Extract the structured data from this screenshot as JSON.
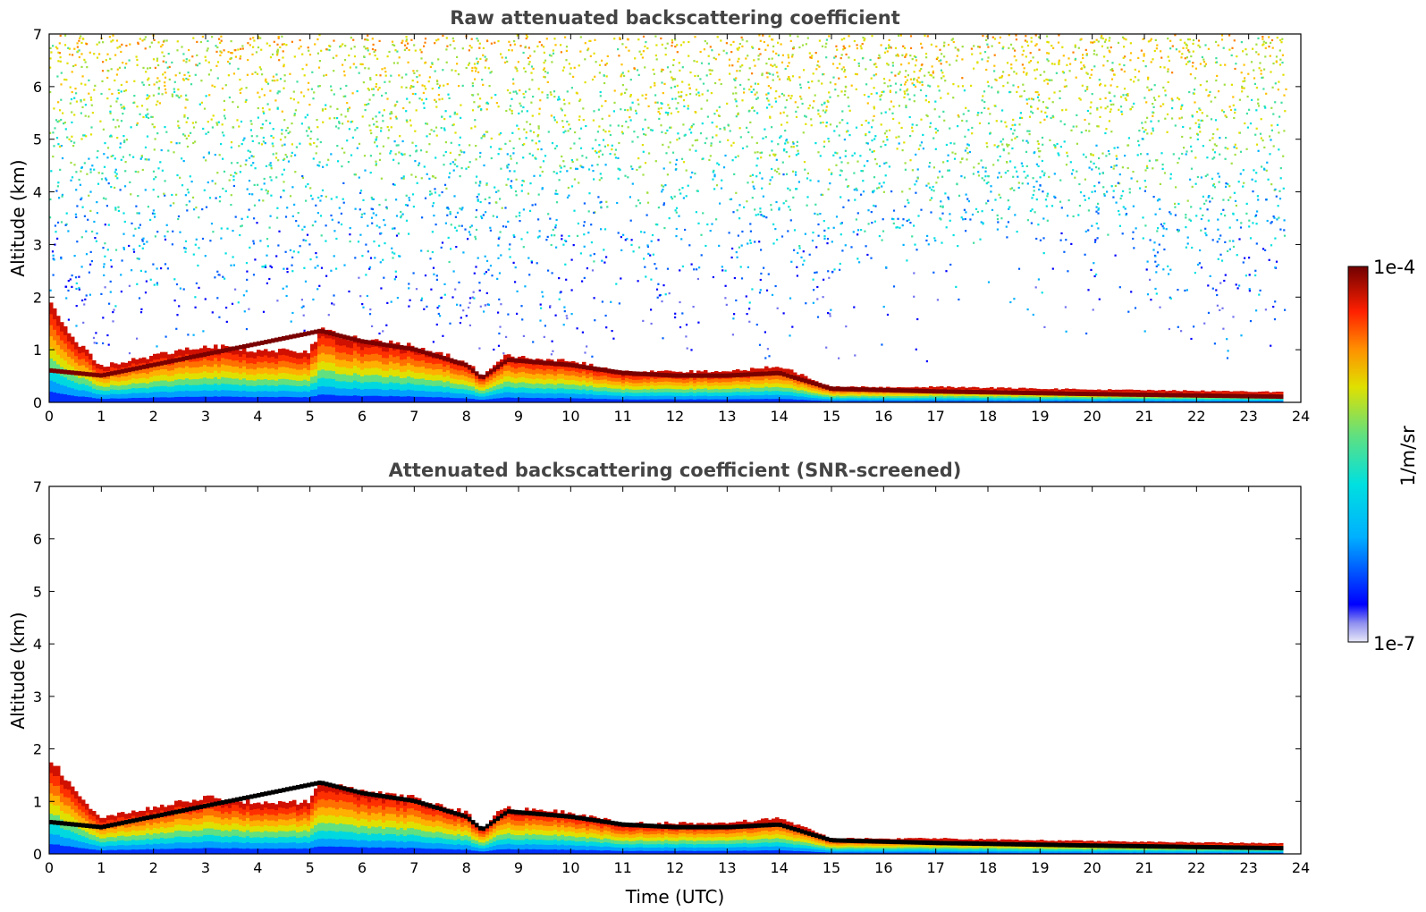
{
  "chart_data": [
    {
      "type": "heatmap",
      "panel": "raw",
      "title": "Raw attenuated backscattering coefficient",
      "xlabel": "",
      "ylabel": "Altitude (km)",
      "xlim": [
        0,
        24
      ],
      "ylim": [
        0,
        7
      ],
      "x_ticks": [
        0,
        1,
        2,
        3,
        4,
        5,
        6,
        7,
        8,
        9,
        10,
        11,
        12,
        13,
        14,
        15,
        16,
        17,
        18,
        19,
        20,
        21,
        22,
        23,
        24
      ],
      "y_ticks": [
        0,
        1,
        2,
        3,
        4,
        5,
        6,
        7
      ],
      "data_end_time": 23.7,
      "noise_background": "increasing with altitude",
      "boundary_layer_top_km": [
        [
          0,
          1.9
        ],
        [
          0.5,
          1.2
        ],
        [
          1,
          0.7
        ],
        [
          2,
          0.9
        ],
        [
          3,
          1.1
        ],
        [
          4,
          1.0
        ],
        [
          5,
          1.0
        ],
        [
          5.2,
          1.4
        ],
        [
          6,
          1.2
        ],
        [
          7,
          1.1
        ],
        [
          8,
          0.8
        ],
        [
          8.3,
          0.5
        ],
        [
          8.7,
          0.9
        ],
        [
          10,
          0.8
        ],
        [
          11,
          0.6
        ],
        [
          12,
          0.6
        ],
        [
          13,
          0.6
        ],
        [
          14,
          0.7
        ],
        [
          15,
          0.3
        ],
        [
          17,
          0.3
        ],
        [
          20,
          0.25
        ],
        [
          23.7,
          0.2
        ]
      ],
      "aerosol_layer_km": [
        [
          0,
          0.6
        ],
        [
          1,
          0.5
        ],
        [
          5.2,
          1.35
        ],
        [
          6,
          1.15
        ],
        [
          7,
          1.0
        ],
        [
          8,
          0.7
        ],
        [
          8.3,
          0.45
        ],
        [
          8.8,
          0.8
        ],
        [
          10,
          0.7
        ],
        [
          11,
          0.55
        ],
        [
          12,
          0.5
        ],
        [
          13,
          0.5
        ],
        [
          14,
          0.55
        ],
        [
          15,
          0.25
        ],
        [
          17,
          0.2
        ],
        [
          20,
          0.15
        ],
        [
          23.7,
          0.1
        ]
      ]
    },
    {
      "type": "heatmap",
      "panel": "screened",
      "title": "Attenuated backscattering coefficient (SNR-screened)",
      "xlabel": "Time (UTC)",
      "ylabel": "Altitude (km)",
      "xlim": [
        0,
        24
      ],
      "ylim": [
        0,
        7
      ],
      "x_ticks": [
        0,
        1,
        2,
        3,
        4,
        5,
        6,
        7,
        8,
        9,
        10,
        11,
        12,
        13,
        14,
        15,
        16,
        17,
        18,
        19,
        20,
        21,
        22,
        23,
        24
      ],
      "y_ticks": [
        0,
        1,
        2,
        3,
        4,
        5,
        6,
        7
      ],
      "data_end_time": 23.7
    }
  ],
  "colorbar": {
    "max_label": "1e-4",
    "min_label": "1e-7",
    "unit_label": "1/m/sr",
    "colors": [
      "#e8e8f8",
      "#b0b0f0",
      "#7070f0",
      "#0000ff",
      "#0060ff",
      "#00b0ff",
      "#00e0e0",
      "#40e0a0",
      "#a0e040",
      "#e0e000",
      "#ffc000",
      "#ff8000",
      "#ff3000",
      "#e00000",
      "#a00000",
      "#700000"
    ]
  }
}
